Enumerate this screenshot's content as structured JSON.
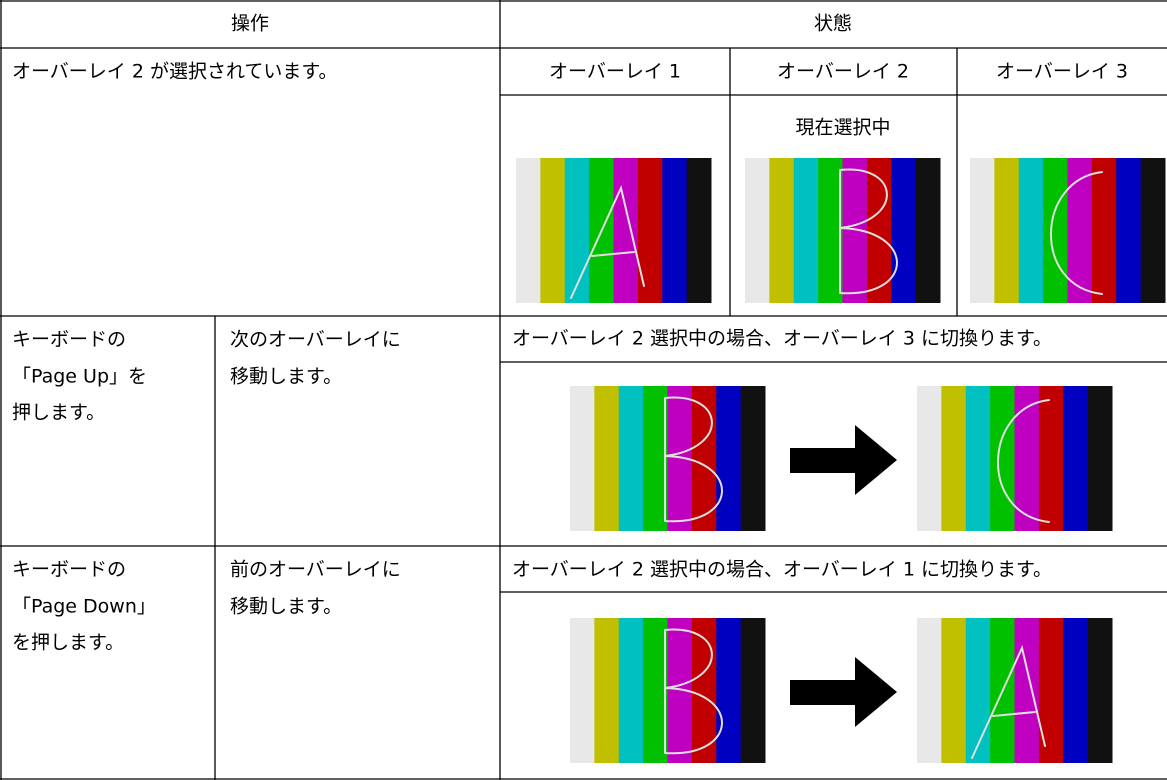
{
  "table": {
    "header": [
      "操作",
      "状態"
    ],
    "rows": [
      {
        "operation": "オーバーレイ 2 が選択されています。",
        "overlays": [
          "オーバーレイ 1",
          "オーバーレイ 2",
          "オーバーレイ 3"
        ],
        "selected_note": "現在選択中"
      },
      {
        "key": [
          "キーボードの",
          "「Page Up」を",
          "押します。"
        ],
        "action": [
          "次のオーバーレイに",
          "移動します。"
        ],
        "state": "オーバーレイ 2 選択中の場合、オーバーレイ 3 に切換ります。"
      },
      {
        "key": [
          "キーボードの",
          "「Page Down」",
          "を押します。"
        ],
        "action": [
          "前のオーバーレイに",
          "移動します。"
        ],
        "state": "オーバーレイ 2 選択中の場合、オーバーレイ 1 に切換ります。"
      }
    ]
  }
}
